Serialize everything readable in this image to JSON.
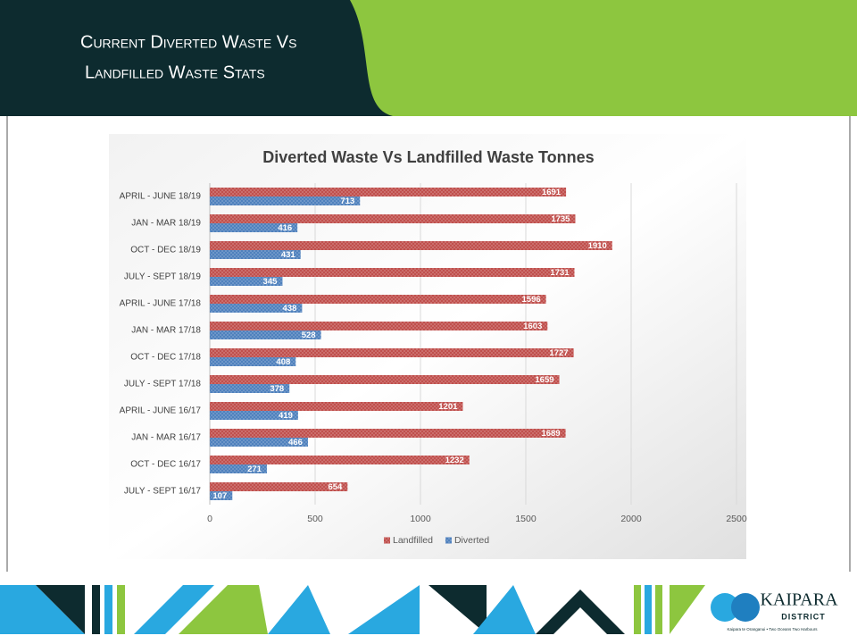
{
  "slide": {
    "title_lines": [
      "Current Diverted Waste Vs",
      "Landfilled Waste Stats"
    ],
    "logo": {
      "name": "KAIPARA",
      "sub": "DISTRICT",
      "tagline": "Kaipara te Oranganui • Two Oceans Two Harbours"
    }
  },
  "chart_data": {
    "type": "hbar",
    "title": "Diverted Waste Vs Landfilled Waste Tonnes",
    "categories": [
      "APRIL - JUNE 18/19",
      "JAN - MAR 18/19",
      "OCT - DEC 18/19",
      "JULY - SEPT  18/19",
      "APRIL - JUNE 17/18",
      "JAN - MAR 17/18",
      "OCT - DEC 17/18",
      "JULY - SEPT 17/18",
      "APRIL - JUNE 16/17",
      "JAN - MAR 16/17",
      "OCT - DEC  16/17",
      "JULY - SEPT  16/17"
    ],
    "series": [
      {
        "name": "Landfilled",
        "color": "#c0504d",
        "values": [
          1691,
          1735,
          1910,
          1731,
          1596,
          1603,
          1727,
          1659,
          1201,
          1689,
          1232,
          654
        ]
      },
      {
        "name": "Diverted",
        "color": "#4f81bd",
        "values": [
          713,
          416,
          431,
          345,
          438,
          528,
          408,
          378,
          419,
          466,
          271,
          107
        ]
      }
    ],
    "xlim": [
      0,
      2500
    ],
    "xticks": [
      0,
      500,
      1000,
      1500,
      2000,
      2500
    ],
    "grid": true,
    "legend": "bottom"
  }
}
